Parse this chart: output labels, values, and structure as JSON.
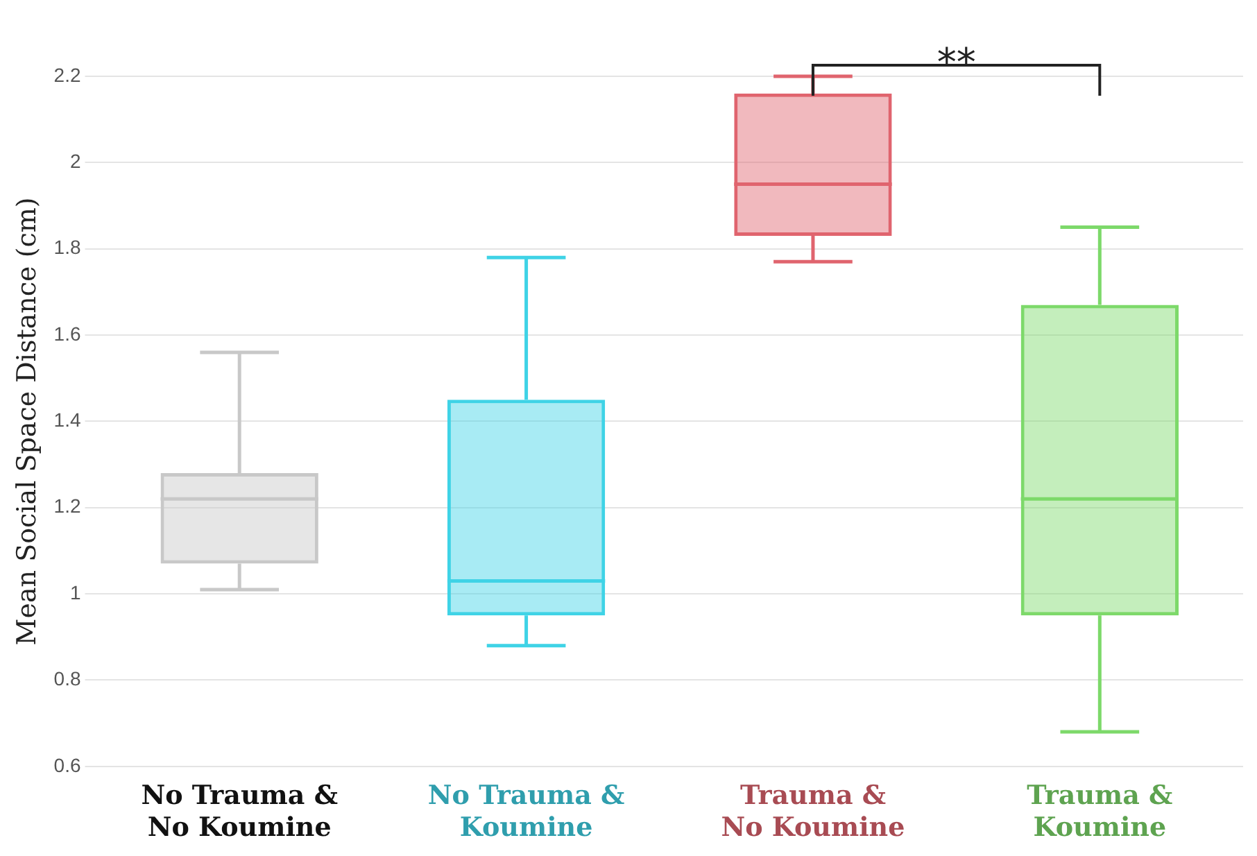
{
  "chart_data": {
    "type": "box",
    "ylabel": "Mean Social Space Distance (cm)",
    "categories": [
      "No Trauma &\nNo Koumine",
      "No Trauma &\nKoumine",
      "Trauma &\nNo Koumine",
      "Trauma &\nKoumine"
    ],
    "colors": [
      "#c8c8c8",
      "#3fd3e6",
      "#e0646e",
      "#7dd96a"
    ],
    "boxes": [
      {
        "low": 1.01,
        "q1": 1.07,
        "median": 1.22,
        "q3": 1.28,
        "high": 1.56
      },
      {
        "low": 0.88,
        "q1": 0.95,
        "median": 1.03,
        "q3": 1.45,
        "high": 1.78
      },
      {
        "low": 1.77,
        "q1": 1.83,
        "median": 1.95,
        "q3": 2.16,
        "high": 2.2
      },
      {
        "low": 0.68,
        "q1": 0.95,
        "median": 1.22,
        "q3": 1.67,
        "high": 1.85
      }
    ],
    "ylim": [
      0.6,
      2.2
    ],
    "yticks": [
      0.6,
      0.8,
      1,
      1.2,
      1.4,
      1.6,
      1.8,
      2,
      2.2
    ],
    "grid": "y",
    "annotations": [
      "**"
    ]
  }
}
